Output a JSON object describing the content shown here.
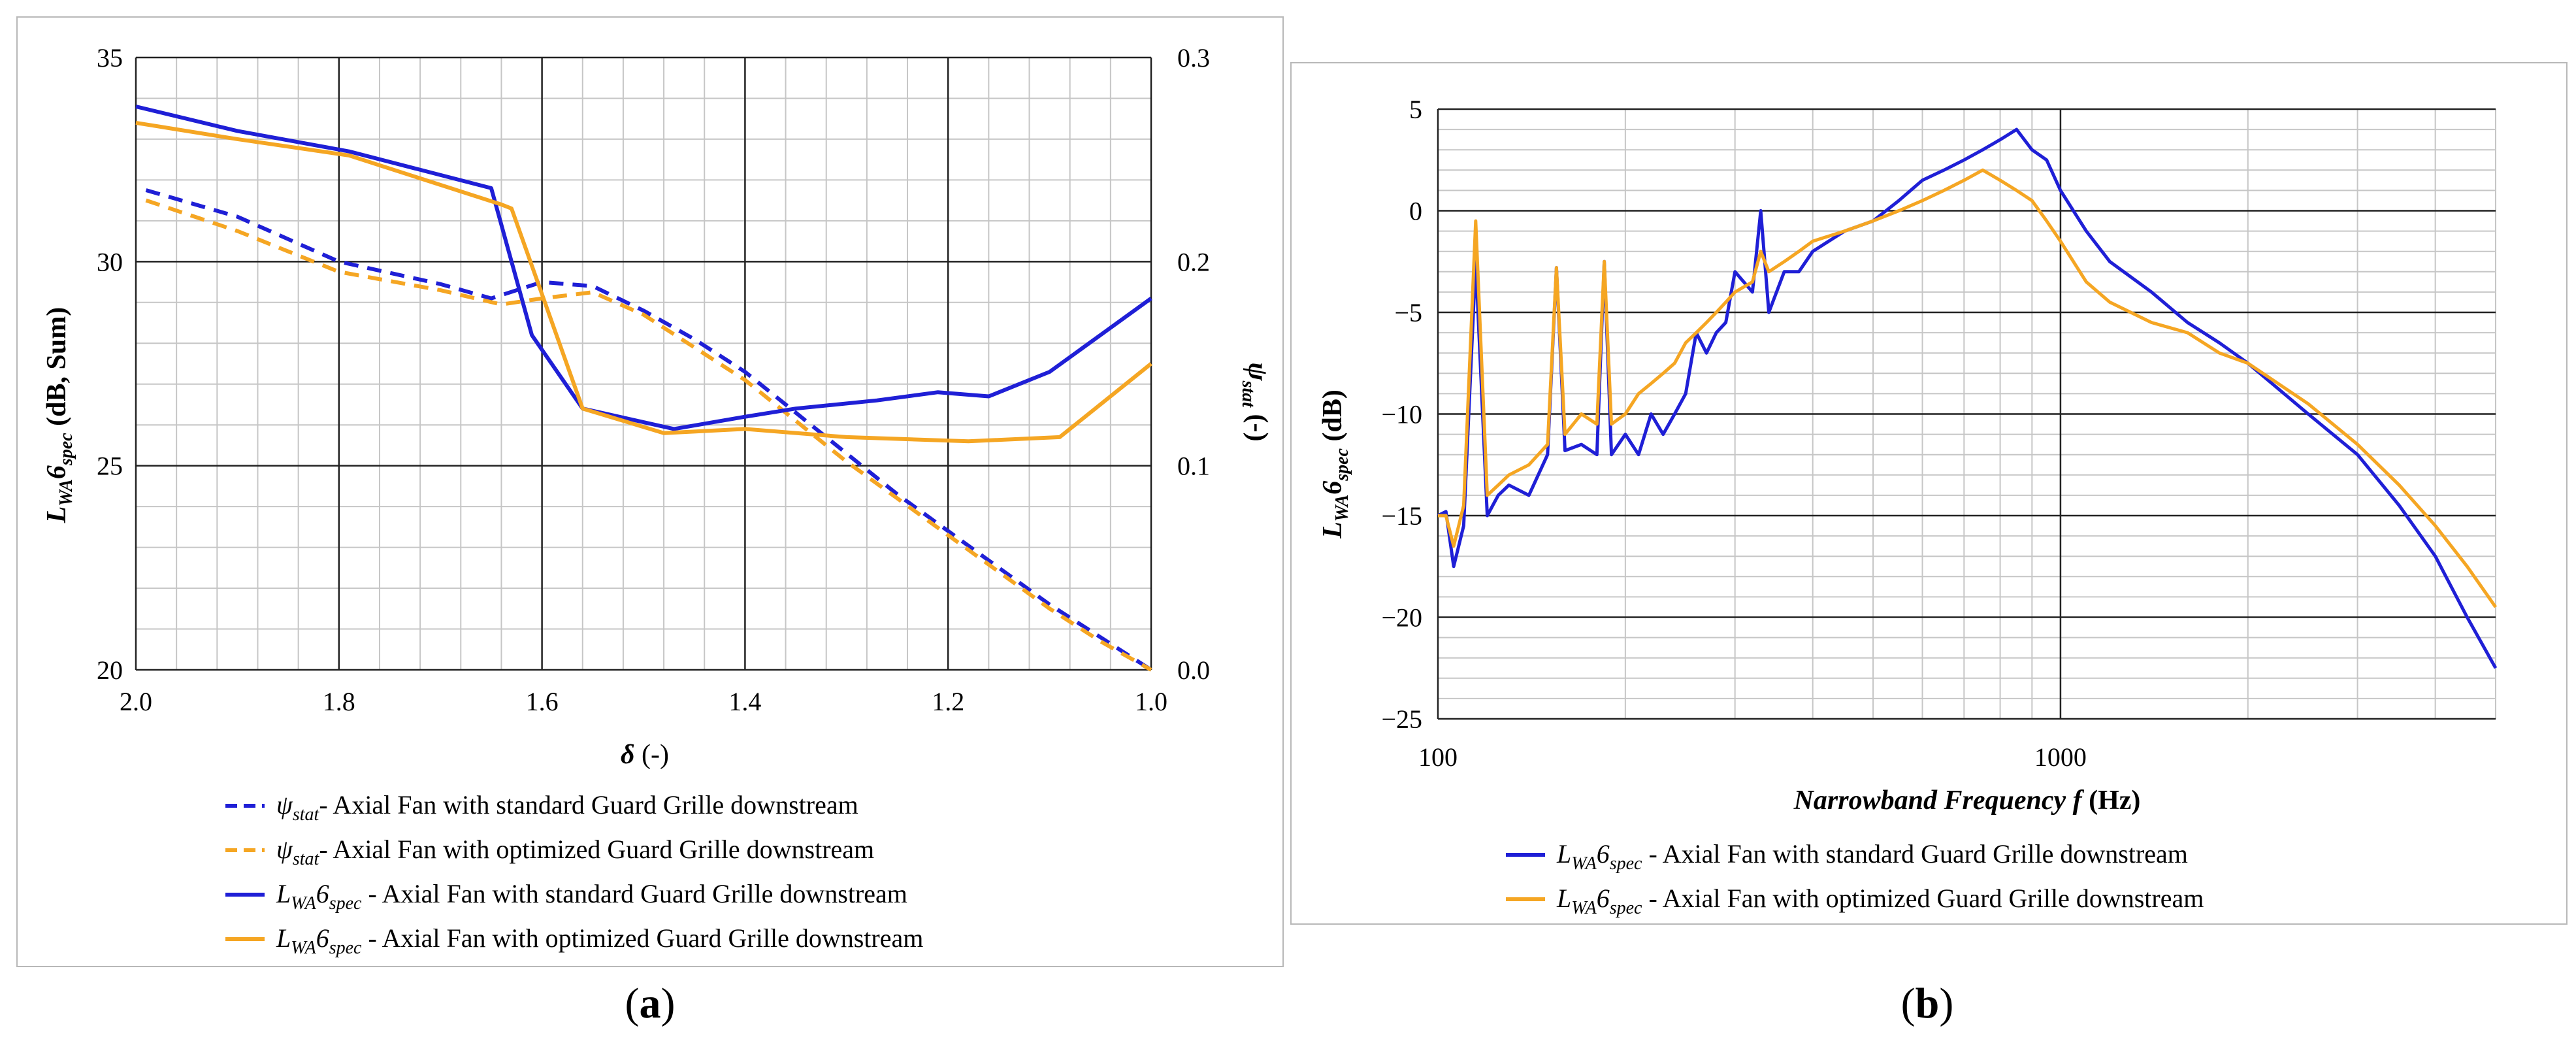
{
  "figure_labels": {
    "a": "a",
    "b": "b"
  },
  "colors": {
    "blue": "#1f1fd6",
    "orange": "#f5a623"
  },
  "chart_data": [
    {
      "id": "a",
      "type": "line",
      "xlabel": "δ (-)",
      "ylabel_left": "L_WA6_spec (dB, Sum)",
      "ylabel_right": "ψ_stat (-)",
      "xlim": [
        2.0,
        1.0
      ],
      "ylim_left": [
        20,
        35
      ],
      "ylim_right": [
        0.0,
        0.3
      ],
      "x_ticks": [
        "2.0",
        "1.8",
        "1.6",
        "1.4",
        "1.2",
        "1.0"
      ],
      "yleft_ticks": [
        "20",
        "25",
        "30",
        "35"
      ],
      "yright_ticks": [
        "0.0",
        "0.1",
        "0.2",
        "0.3"
      ],
      "grid": true,
      "series": [
        {
          "name": "ψstat - Axial Fan with standard Guard Grille downstream",
          "legend_sym": "ψ",
          "legend_sub": "stat",
          "legend_text": "-  Axial Fan with standard Guard Grille downstream",
          "axis": "right",
          "color": "#1f1fd6",
          "dash": true,
          "x": [
            1.99,
            1.9,
            1.8,
            1.7,
            1.65,
            1.6,
            1.55,
            1.5,
            1.45,
            1.4,
            1.35,
            1.3,
            1.25,
            1.2,
            1.15,
            1.1,
            1.05,
            1.0
          ],
          "y": [
            0.235,
            0.222,
            0.2,
            0.189,
            0.182,
            0.19,
            0.188,
            0.176,
            0.162,
            0.146,
            0.126,
            0.106,
            0.086,
            0.068,
            0.05,
            0.032,
            0.016,
            0.0
          ]
        },
        {
          "name": "ψstat - Axial Fan with optimized Guard Grille downstream",
          "legend_sym": "ψ",
          "legend_sub": "stat",
          "legend_text": "-  Axial Fan with optimized Guard Grille downstream",
          "axis": "right",
          "color": "#f5a623",
          "dash": true,
          "x": [
            1.99,
            1.9,
            1.8,
            1.7,
            1.64,
            1.6,
            1.55,
            1.5,
            1.45,
            1.4,
            1.35,
            1.3,
            1.25,
            1.2,
            1.15,
            1.1,
            1.05,
            1.0
          ],
          "y": [
            0.23,
            0.215,
            0.195,
            0.186,
            0.179,
            0.182,
            0.185,
            0.174,
            0.158,
            0.142,
            0.122,
            0.102,
            0.084,
            0.066,
            0.048,
            0.03,
            0.014,
            0.0
          ]
        },
        {
          "name": "LWA6spec - Axial Fan with standard Guard Grille downstream",
          "legend_sym": "L",
          "legend_sub": "WA",
          "legend_sym2": "6",
          "legend_sub2": "spec",
          "legend_text": " - Axial Fan with standard Guard Grille downstream",
          "axis": "left",
          "color": "#1f1fd6",
          "dash": false,
          "x": [
            2.0,
            1.9,
            1.79,
            1.65,
            1.61,
            1.56,
            1.47,
            1.4,
            1.35,
            1.27,
            1.21,
            1.16,
            1.1,
            1.0
          ],
          "y": [
            33.8,
            33.2,
            32.7,
            31.8,
            28.2,
            26.4,
            25.9,
            26.2,
            26.4,
            26.6,
            26.8,
            26.7,
            27.3,
            29.1
          ]
        },
        {
          "name": "LWA6spec - Axial Fan with optimized Guard Grille downstream",
          "legend_sym": "L",
          "legend_sub": "WA",
          "legend_sym2": "6",
          "legend_sub2": "spec",
          "legend_text": " - Axial Fan with optimized Guard Grille downstream",
          "axis": "left",
          "color": "#f5a623",
          "dash": false,
          "x": [
            2.0,
            1.9,
            1.79,
            1.64,
            1.63,
            1.56,
            1.48,
            1.4,
            1.3,
            1.18,
            1.09,
            1.0
          ],
          "y": [
            33.4,
            33.0,
            32.6,
            31.4,
            31.3,
            26.4,
            25.8,
            25.9,
            25.7,
            25.6,
            25.7,
            27.5
          ]
        }
      ]
    },
    {
      "id": "b",
      "type": "line",
      "xscale": "log",
      "xlabel_italic": "Narrowband Frequency f",
      "xlabel_unit": " (Hz)",
      "ylabel": "L_WA6_spec (dB)",
      "xlim": [
        100,
        5000
      ],
      "ylim": [
        -25,
        5
      ],
      "x_ticks": [
        "100",
        "1000"
      ],
      "y_ticks": [
        "5",
        "0",
        "-5",
        "-10",
        "-15",
        "-20",
        "-25"
      ],
      "grid": true,
      "series": [
        {
          "name": "LWA6spec - Axial Fan with standard Guard Grille downstream",
          "legend_sym": "L",
          "legend_sub": "WA",
          "legend_sym2": "6",
          "legend_sub2": "spec",
          "legend_text": " - Axial Fan with standard Guard Grille downstream",
          "color": "#1f1fd6",
          "x": [
            100,
            103,
            106,
            110,
            115,
            120,
            125,
            130,
            140,
            150,
            155,
            160,
            170,
            180,
            185,
            190,
            200,
            210,
            220,
            230,
            240,
            250,
            260,
            270,
            280,
            290,
            300,
            320,
            330,
            340,
            360,
            380,
            400,
            450,
            500,
            550,
            600,
            650,
            700,
            750,
            800,
            850,
            900,
            950,
            1000,
            1100,
            1200,
            1400,
            1600,
            1800,
            2000,
            2500,
            3000,
            3500,
            4000,
            4500,
            5000
          ],
          "y": [
            -15,
            -14.8,
            -17.5,
            -15.5,
            -2.5,
            -15,
            -14,
            -13.5,
            -14,
            -12,
            -2.8,
            -11.8,
            -11.5,
            -12,
            -2.5,
            -12,
            -11,
            -12,
            -10,
            -11,
            -10,
            -9,
            -6,
            -7,
            -6,
            -5.5,
            -3,
            -4,
            0,
            -5,
            -3,
            -3,
            -2,
            -1,
            -0.5,
            0.5,
            1.5,
            2,
            2.5,
            3,
            3.5,
            4,
            3,
            2.5,
            1,
            -1,
            -2.5,
            -4,
            -5.5,
            -6.5,
            -7.5,
            -10,
            -12,
            -14.5,
            -17,
            -20,
            -22.5
          ]
        },
        {
          "name": "LWA6spec - Axial Fan with optimized Guard Grille downstream",
          "legend_sym": "L",
          "legend_sub": "WA",
          "legend_sym2": "6",
          "legend_sub2": "spec",
          "legend_text": " - Axial Fan with optimized Guard Grille downstream",
          "color": "#f5a623",
          "x": [
            100,
            103,
            106,
            110,
            115,
            120,
            125,
            130,
            140,
            150,
            155,
            160,
            170,
            180,
            185,
            190,
            200,
            210,
            220,
            230,
            240,
            250,
            260,
            270,
            280,
            290,
            300,
            320,
            330,
            340,
            360,
            380,
            400,
            450,
            500,
            550,
            600,
            650,
            700,
            750,
            800,
            850,
            900,
            950,
            1000,
            1100,
            1200,
            1400,
            1600,
            1800,
            2000,
            2500,
            3000,
            3500,
            4000,
            4500,
            5000
          ],
          "y": [
            -15,
            -15,
            -16.5,
            -14.5,
            -0.5,
            -14,
            -13.5,
            -13,
            -12.5,
            -11.5,
            -2.8,
            -11,
            -10,
            -10.5,
            -2.5,
            -10.5,
            -10,
            -9,
            -8.5,
            -8,
            -7.5,
            -6.5,
            -6,
            -5.5,
            -5,
            -4.5,
            -4,
            -3.5,
            -2,
            -3,
            -2.5,
            -2,
            -1.5,
            -1,
            -0.5,
            0,
            0.5,
            1,
            1.5,
            2,
            1.5,
            1,
            0.5,
            -0.5,
            -1.5,
            -3.5,
            -4.5,
            -5.5,
            -6,
            -7,
            -7.5,
            -9.5,
            -11.5,
            -13.5,
            -15.5,
            -17.5,
            -19.5
          ]
        }
      ]
    }
  ]
}
